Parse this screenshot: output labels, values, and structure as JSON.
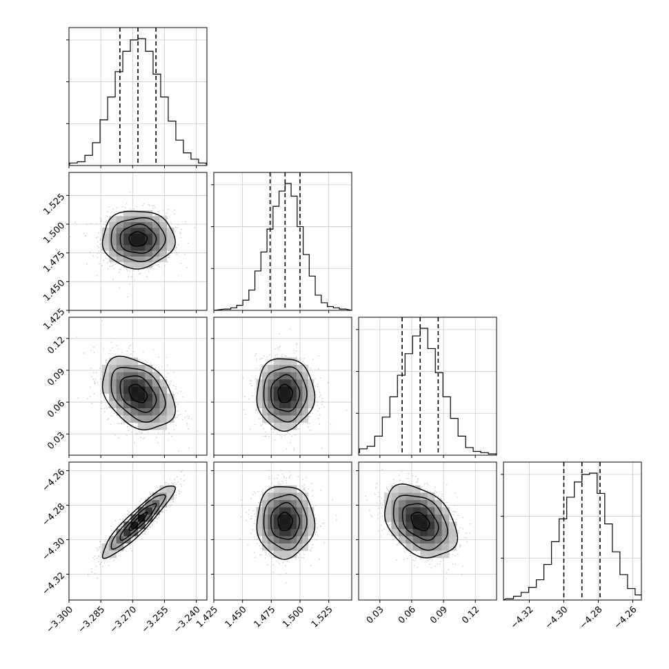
{
  "figure": {
    "type": "corner-plot",
    "parameter_count": 4,
    "quantile_lines": "dashed, 16/50/84 percentiles on each 1-D histogram",
    "contour_color": "#000000",
    "scatter_color": "#bdbdbd",
    "histogram_color": "#000000",
    "grid_color": "#c8c8c8",
    "grid": true
  },
  "chart_data": {
    "type": "corner",
    "parameters": [
      {
        "index": 0,
        "center": -3.2675,
        "sigma": 0.0085,
        "range": [
          -3.3,
          -3.235
        ],
        "ticks": [
          -3.3,
          -3.285,
          -3.27,
          -3.255,
          -3.24
        ],
        "tick_labels": [
          "−3.300",
          "−3.285",
          "−3.270",
          "−3.255",
          "−3.240"
        ],
        "quantiles": [
          -3.276,
          -3.2675,
          -3.259
        ],
        "hist_bins": [
          0.01,
          0.02,
          0.03,
          0.08,
          0.18,
          0.36,
          0.54,
          0.74,
          0.9,
          0.99,
          1.0,
          0.9,
          0.72,
          0.54,
          0.35,
          0.2,
          0.1,
          0.05,
          0.02,
          0.01
        ]
      },
      {
        "index": 1,
        "center": 1.487,
        "sigma": 0.0125,
        "range": [
          1.425,
          1.545
        ],
        "ticks": [
          1.425,
          1.45,
          1.475,
          1.5,
          1.525
        ],
        "tick_labels": [
          "1.425",
          "1.450",
          "1.475",
          "1.500",
          "1.525"
        ],
        "quantiles": [
          1.474,
          1.487,
          1.5
        ],
        "hist_bins": [
          0.01,
          0.02,
          0.04,
          0.08,
          0.16,
          0.31,
          0.46,
          0.64,
          0.82,
          0.94,
          1.0,
          0.9,
          0.66,
          0.44,
          0.27,
          0.12,
          0.06,
          0.03,
          0.02,
          0.01
        ]
      },
      {
        "index": 2,
        "center": 0.068,
        "sigma": 0.017,
        "range": [
          0.01,
          0.14
        ],
        "ticks": [
          0.03,
          0.06,
          0.09,
          0.12
        ],
        "tick_labels": [
          "0.03",
          "0.06",
          "0.09",
          "0.12"
        ],
        "quantiles": [
          0.051,
          0.068,
          0.085
        ],
        "hist_bins": [
          0.01,
          0.02,
          0.05,
          0.07,
          0.15,
          0.3,
          0.46,
          0.63,
          0.8,
          0.94,
          1.0,
          0.84,
          0.65,
          0.46,
          0.29,
          0.15,
          0.06,
          0.03,
          0.02,
          0.01
        ]
      },
      {
        "index": 3,
        "center": -4.2895,
        "sigma": 0.0105,
        "range": [
          -4.335,
          -4.255
        ],
        "ticks": [
          -4.32,
          -4.3,
          -4.28,
          -4.26
        ],
        "tick_labels": [
          "−4.32",
          "−4.30",
          "−4.28",
          "−4.26"
        ],
        "quantiles": [
          -4.3,
          -4.2895,
          -4.279
        ],
        "hist_bins": [
          0.01,
          0.03,
          0.06,
          0.1,
          0.16,
          0.28,
          0.46,
          0.64,
          0.81,
          0.93,
          0.99,
          1.0,
          0.84,
          0.6,
          0.38,
          0.2,
          0.09,
          0.04,
          0.02,
          0.01
        ]
      }
    ],
    "correlations": [
      {
        "pair": [
          0,
          1
        ],
        "rho": 0.0
      },
      {
        "pair": [
          0,
          2
        ],
        "rho": -0.35
      },
      {
        "pair": [
          1,
          2
        ],
        "rho": 0.0
      },
      {
        "pair": [
          0,
          3
        ],
        "rho": 0.92
      },
      {
        "pair": [
          1,
          3
        ],
        "rho": 0.0
      },
      {
        "pair": [
          2,
          3
        ],
        "rho": -0.35
      }
    ],
    "contour_levels_sigma": [
      0.5,
      1.0,
      1.5,
      2.0
    ]
  }
}
